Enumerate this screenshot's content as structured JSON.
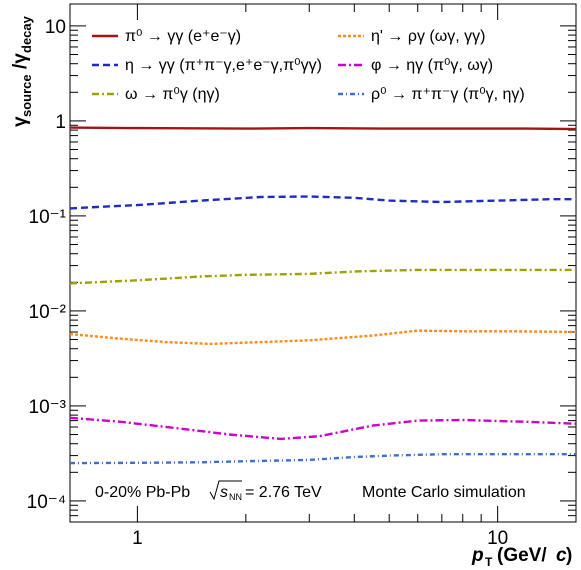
{
  "chart_data": {
    "type": "line",
    "title": "",
    "xlabel": "p_T (GeV/c)",
    "ylabel": "γ_source/γ_decay",
    "x_scale": "log",
    "y_scale": "log",
    "xlim": [
      0.65,
      16.5
    ],
    "ylim": [
      6e-05,
      17
    ],
    "grid": false,
    "legend_position": "top",
    "x_ticks": [
      {
        "value": 1,
        "label": "1"
      },
      {
        "value": 10,
        "label": "10"
      }
    ],
    "y_ticks": [
      {
        "value": 10,
        "label": "10"
      },
      {
        "value": 1,
        "label": "1"
      },
      {
        "value": 0.1,
        "label": "10⁻¹"
      },
      {
        "value": 0.01,
        "label": "10⁻²"
      },
      {
        "value": 0.001,
        "label": "10⁻³"
      },
      {
        "value": 0.0001,
        "label": "10⁻⁴"
      }
    ],
    "series": [
      {
        "name": "π⁰ → γγ (e⁺e⁻γ)",
        "color": "#a31515",
        "dash": "",
        "x": [
          0.65,
          1,
          2,
          3,
          5,
          8,
          12,
          16.5
        ],
        "values": [
          0.85,
          0.84,
          0.83,
          0.84,
          0.83,
          0.83,
          0.83,
          0.82
        ]
      },
      {
        "name": "η → γγ (π⁺π⁻γ,e⁺e⁻γ,π⁰γγ)",
        "color": "#1f2bc4",
        "dash": "7,4",
        "x": [
          0.65,
          0.8,
          1,
          1.5,
          2.2,
          3,
          4,
          5,
          7,
          10,
          14,
          16.5
        ],
        "values": [
          0.12,
          0.125,
          0.13,
          0.145,
          0.158,
          0.16,
          0.155,
          0.145,
          0.14,
          0.145,
          0.15,
          0.15
        ]
      },
      {
        "name": "ω → π⁰γ (ηγ)",
        "color": "#a0a000",
        "dash": "7,3,2,3",
        "x": [
          0.65,
          1,
          1.5,
          2,
          3,
          4,
          6,
          10,
          16.5
        ],
        "values": [
          0.0195,
          0.021,
          0.023,
          0.024,
          0.0245,
          0.026,
          0.027,
          0.027,
          0.027
        ]
      },
      {
        "name": "η' → ργ (ωγ, γγ)",
        "color": "#ff8c1a",
        "dash": "3,2",
        "x": [
          0.65,
          0.9,
          1.2,
          1.6,
          2.2,
          3,
          4.5,
          6,
          8,
          11,
          16.5
        ],
        "values": [
          0.0057,
          0.0051,
          0.0047,
          0.0045,
          0.0047,
          0.0049,
          0.0055,
          0.0062,
          0.0061,
          0.0061,
          0.006
        ]
      },
      {
        "name": "φ → ηγ (π⁰γ, ωγ)",
        "color": "#cc00cc",
        "dash": "8,3,2,3",
        "x": [
          0.65,
          0.9,
          1.3,
          1.8,
          2.5,
          3.2,
          4.5,
          6,
          8,
          12,
          16.5
        ],
        "values": [
          0.00075,
          0.00068,
          0.00058,
          0.0005,
          0.00045,
          0.00048,
          0.00062,
          0.0007,
          0.00071,
          0.00068,
          0.00065
        ]
      },
      {
        "name": "ρ⁰ → π⁺π⁻γ (π⁰γ, ηγ)",
        "color": "#3a6fd8",
        "dash": "5,3,1,3",
        "x": [
          0.65,
          1,
          1.5,
          2,
          3,
          4,
          5,
          7,
          10,
          16.5
        ],
        "values": [
          0.00025,
          0.000252,
          0.000255,
          0.000262,
          0.00027,
          0.00029,
          0.0003,
          0.00031,
          0.00031,
          0.00031
        ]
      }
    ],
    "annotations": {
      "system": "0-20% Pb-Pb",
      "energy": "= 2.76 TeV",
      "sqrt_s_label": "s",
      "sqrt_s_subscript": "NN",
      "simulation": "Monte Carlo simulation"
    },
    "x_title": {
      "main": "p",
      "sub": "T",
      "unit": "(GeV/",
      "unit_italic": "c",
      "unit_end": ")"
    },
    "y_title": {
      "main": "γ",
      "sub": "source",
      "slash": "/γ",
      "sub2": "decay"
    }
  }
}
